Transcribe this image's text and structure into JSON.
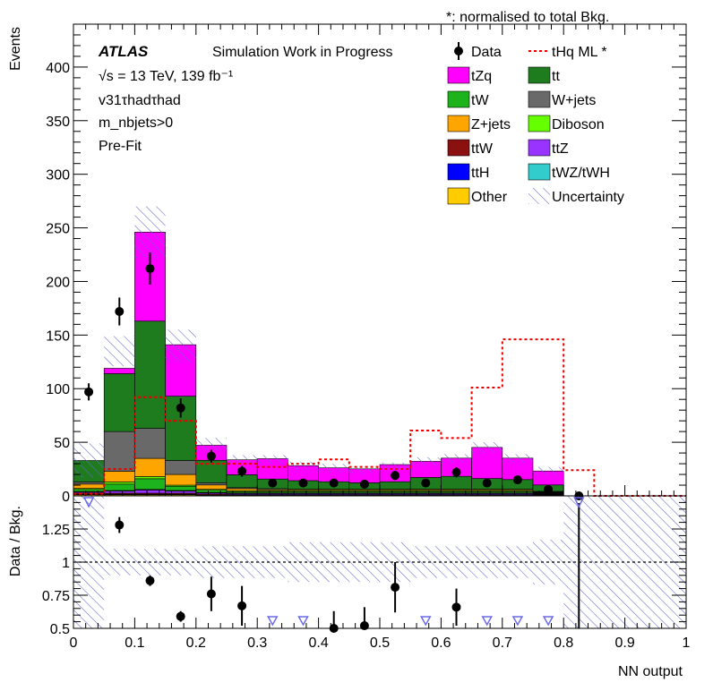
{
  "chart_data": {
    "type": "bar",
    "stacked": true,
    "note": "*: normalised to total Bkg.",
    "atlas_label": "ATLAS",
    "status_label": "Simulation Work in Progress",
    "info_lines": [
      "√s = 13 TeV, 139 fb⁻¹",
      "v31τhadτhad",
      "m_nbjets>0",
      "Pre-Fit"
    ],
    "xlabel": "NN output",
    "ylabel": "Events",
    "ratio_ylabel": "Data / Bkg.",
    "xlim": [
      0,
      1
    ],
    "ylim": [
      0,
      440
    ],
    "ratio_ylim": [
      0.5,
      1.5
    ],
    "x_ticks": [
      "0",
      "0.1",
      "0.2",
      "0.3",
      "0.4",
      "0.5",
      "0.6",
      "0.7",
      "0.8",
      "0.9",
      "1"
    ],
    "y_ticks": [
      "0",
      "50",
      "100",
      "150",
      "200",
      "250",
      "300",
      "350",
      "400"
    ],
    "ratio_ticks": [
      "0.5",
      "0.75",
      "1",
      "1.25"
    ],
    "bin_edges": [
      0.0,
      0.05,
      0.1,
      0.15,
      0.2,
      0.25,
      0.3,
      0.35,
      0.4,
      0.45,
      0.5,
      0.55,
      0.6,
      0.65,
      0.7,
      0.75,
      0.8,
      0.85,
      0.9,
      0.95,
      1.0
    ],
    "legend_position": "top-right",
    "legend": [
      {
        "label": "Data",
        "kind": "marker"
      },
      {
        "label": "tHq ML *",
        "kind": "line",
        "color": "#e60000"
      },
      {
        "label": "tZq",
        "kind": "fill",
        "color": "#ff00ff"
      },
      {
        "label": "tt",
        "kind": "fill",
        "color": "#1e7b1e"
      },
      {
        "label": "tW",
        "kind": "fill",
        "color": "#1cb31c"
      },
      {
        "label": "W+jets",
        "kind": "fill",
        "color": "#696969"
      },
      {
        "label": "Z+jets",
        "kind": "fill",
        "color": "#ffa500"
      },
      {
        "label": "Diboson",
        "kind": "fill",
        "color": "#66ff00"
      },
      {
        "label": "ttW",
        "kind": "fill",
        "color": "#8b1010"
      },
      {
        "label": "ttZ",
        "kind": "fill",
        "color": "#9933ff"
      },
      {
        "label": "ttH",
        "kind": "fill",
        "color": "#0000ff"
      },
      {
        "label": "tWZ/tWH",
        "kind": "fill",
        "color": "#33cccc"
      },
      {
        "label": "Other",
        "kind": "fill",
        "color": "#ffcc00"
      },
      {
        "label": "Uncertainty",
        "kind": "hatch",
        "color": "#6666cc"
      }
    ],
    "series": [
      {
        "name": "Other",
        "color": "#ffcc00",
        "values": [
          1,
          1,
          1,
          1,
          0.5,
          0.5,
          0.5,
          0.5,
          0.5,
          0.5,
          0.5,
          0.5,
          0.5,
          0.5,
          0.5,
          0.5,
          0,
          0,
          0,
          0
        ]
      },
      {
        "name": "ttH",
        "color": "#0000ff",
        "values": [
          0.5,
          0.5,
          0.5,
          0.5,
          0.2,
          0.2,
          0.2,
          0.2,
          0.2,
          0.2,
          0.2,
          0.2,
          0.2,
          0.2,
          0.2,
          0.2,
          0,
          0,
          0,
          0
        ]
      },
      {
        "name": "ttW",
        "color": "#8b1010",
        "values": [
          1,
          1,
          1,
          1,
          1,
          0.5,
          0.5,
          0.5,
          0.5,
          0.5,
          0.5,
          0.5,
          0.5,
          0.5,
          0.5,
          0.5,
          0,
          0,
          0,
          0
        ]
      },
      {
        "name": "ttZ",
        "color": "#9933ff",
        "values": [
          1,
          2,
          3,
          2,
          1,
          1,
          1,
          1,
          1,
          1,
          1,
          1,
          1,
          1,
          1,
          0.5,
          0,
          0,
          0,
          0
        ]
      },
      {
        "name": "tWZ/tWH",
        "color": "#33cccc",
        "values": [
          0.5,
          0.5,
          0.5,
          0.5,
          0.5,
          0.5,
          0.5,
          0.5,
          0.5,
          0.5,
          0.5,
          0.5,
          0.5,
          0.5,
          0.5,
          0.5,
          0,
          0,
          0,
          0
        ]
      },
      {
        "name": "tW",
        "color": "#1cb31c",
        "values": [
          2,
          6,
          10,
          4,
          2,
          1,
          1,
          1,
          1,
          1,
          1,
          1,
          1,
          1,
          1,
          0.5,
          0,
          0,
          0,
          0
        ]
      },
      {
        "name": "Diboson",
        "color": "#66ff00",
        "values": [
          1,
          2,
          2,
          1,
          1,
          1,
          1,
          1,
          1,
          1,
          1,
          1,
          1,
          1,
          1,
          0.5,
          0,
          0,
          0,
          0
        ]
      },
      {
        "name": "Z+jets",
        "color": "#ffa500",
        "values": [
          4,
          10,
          17,
          10,
          4,
          2,
          1,
          1,
          1,
          1,
          1,
          1,
          1,
          1,
          1,
          0.5,
          0,
          0,
          0,
          0
        ]
      },
      {
        "name": "W+jets",
        "color": "#696969",
        "values": [
          2,
          37,
          28,
          13,
          2,
          1,
          1,
          0.5,
          0.5,
          0.5,
          0.5,
          0.5,
          0.5,
          0.5,
          0.5,
          0.5,
          0,
          0,
          0,
          0
        ]
      },
      {
        "name": "tt",
        "color": "#1e7b1e",
        "values": [
          20,
          54,
          100,
          60,
          21,
          12,
          9,
          8,
          7,
          6,
          7,
          11,
          12,
          10,
          9,
          6,
          0,
          0,
          0,
          0
        ]
      },
      {
        "name": "tZq",
        "color": "#ff00ff",
        "values": [
          0,
          5,
          83,
          48,
          14,
          14,
          19,
          14,
          13,
          13,
          16,
          15,
          17,
          29,
          20,
          13,
          0,
          0,
          0,
          0
        ]
      }
    ],
    "uncertainty_total": [
      33,
      135,
      246,
      140,
      48,
      34,
      34,
      28,
      26,
      24,
      28,
      32,
      35,
      45,
      35,
      23,
      0,
      0,
      0,
      0
    ],
    "uncertainty_band": [
      16,
      14,
      24,
      15,
      6,
      4,
      4,
      4,
      4,
      3,
      3,
      4,
      4,
      5,
      4,
      4,
      0,
      0,
      0,
      0
    ],
    "signal": {
      "name": "tHq ML *",
      "color": "#e60000",
      "values": [
        2,
        25,
        92,
        70,
        30,
        30,
        27,
        30,
        34,
        27,
        25,
        61,
        54,
        101,
        146,
        146,
        24,
        0,
        0,
        0
      ]
    },
    "data_points": [
      {
        "x": 0.025,
        "y": 97,
        "err": 8
      },
      {
        "x": 0.075,
        "y": 172,
        "err": 13
      },
      {
        "x": 0.125,
        "y": 212,
        "err": 15
      },
      {
        "x": 0.175,
        "y": 82,
        "err": 9
      },
      {
        "x": 0.225,
        "y": 37,
        "err": 6
      },
      {
        "x": 0.275,
        "y": 23,
        "err": 5
      },
      {
        "x": 0.325,
        "y": 12,
        "err": 3.5
      },
      {
        "x": 0.375,
        "y": 12,
        "err": 3.5
      },
      {
        "x": 0.425,
        "y": 12,
        "err": 3.5
      },
      {
        "x": 0.475,
        "y": 11,
        "err": 3.3
      },
      {
        "x": 0.525,
        "y": 19,
        "err": 4.4
      },
      {
        "x": 0.575,
        "y": 12,
        "err": 3.5
      },
      {
        "x": 0.625,
        "y": 22,
        "err": 4.7
      },
      {
        "x": 0.675,
        "y": 12,
        "err": 3.5
      },
      {
        "x": 0.725,
        "y": 15,
        "err": 3.9
      },
      {
        "x": 0.775,
        "y": 6,
        "err": 2.4
      },
      {
        "x": 0.825,
        "y": 0,
        "err": 0
      }
    ],
    "ratio_points": [
      {
        "x": 0.075,
        "y": 1.28,
        "err": 0.06
      },
      {
        "x": 0.125,
        "y": 0.86,
        "err": 0.04
      },
      {
        "x": 0.175,
        "y": 0.59,
        "err": 0.04
      },
      {
        "x": 0.225,
        "y": 0.76,
        "err": 0.13
      },
      {
        "x": 0.275,
        "y": 0.67,
        "err": 0.15
      },
      {
        "x": 0.425,
        "y": 0.5,
        "err": 0.13
      },
      {
        "x": 0.475,
        "y": 0.52,
        "err": 0.14
      },
      {
        "x": 0.525,
        "y": 0.81,
        "err": 0.19
      },
      {
        "x": 0.625,
        "y": 0.66,
        "err": 0.14
      }
    ],
    "ratio_offscale_low": [
      0.325,
      0.375,
      0.575,
      0.675,
      0.725,
      0.775
    ],
    "ratio_offscale_high": [
      0.025
    ],
    "ratio_uncertainty_half": [
      0.5,
      0.1,
      0.1,
      0.1,
      0.12,
      0.12,
      0.12,
      0.15,
      0.15,
      0.15,
      0.15,
      0.12,
      0.12,
      0.12,
      0.12,
      0.17,
      0.5,
      0.5,
      0.5,
      0.5
    ],
    "ratio_zero_line_x": 0.825
  }
}
